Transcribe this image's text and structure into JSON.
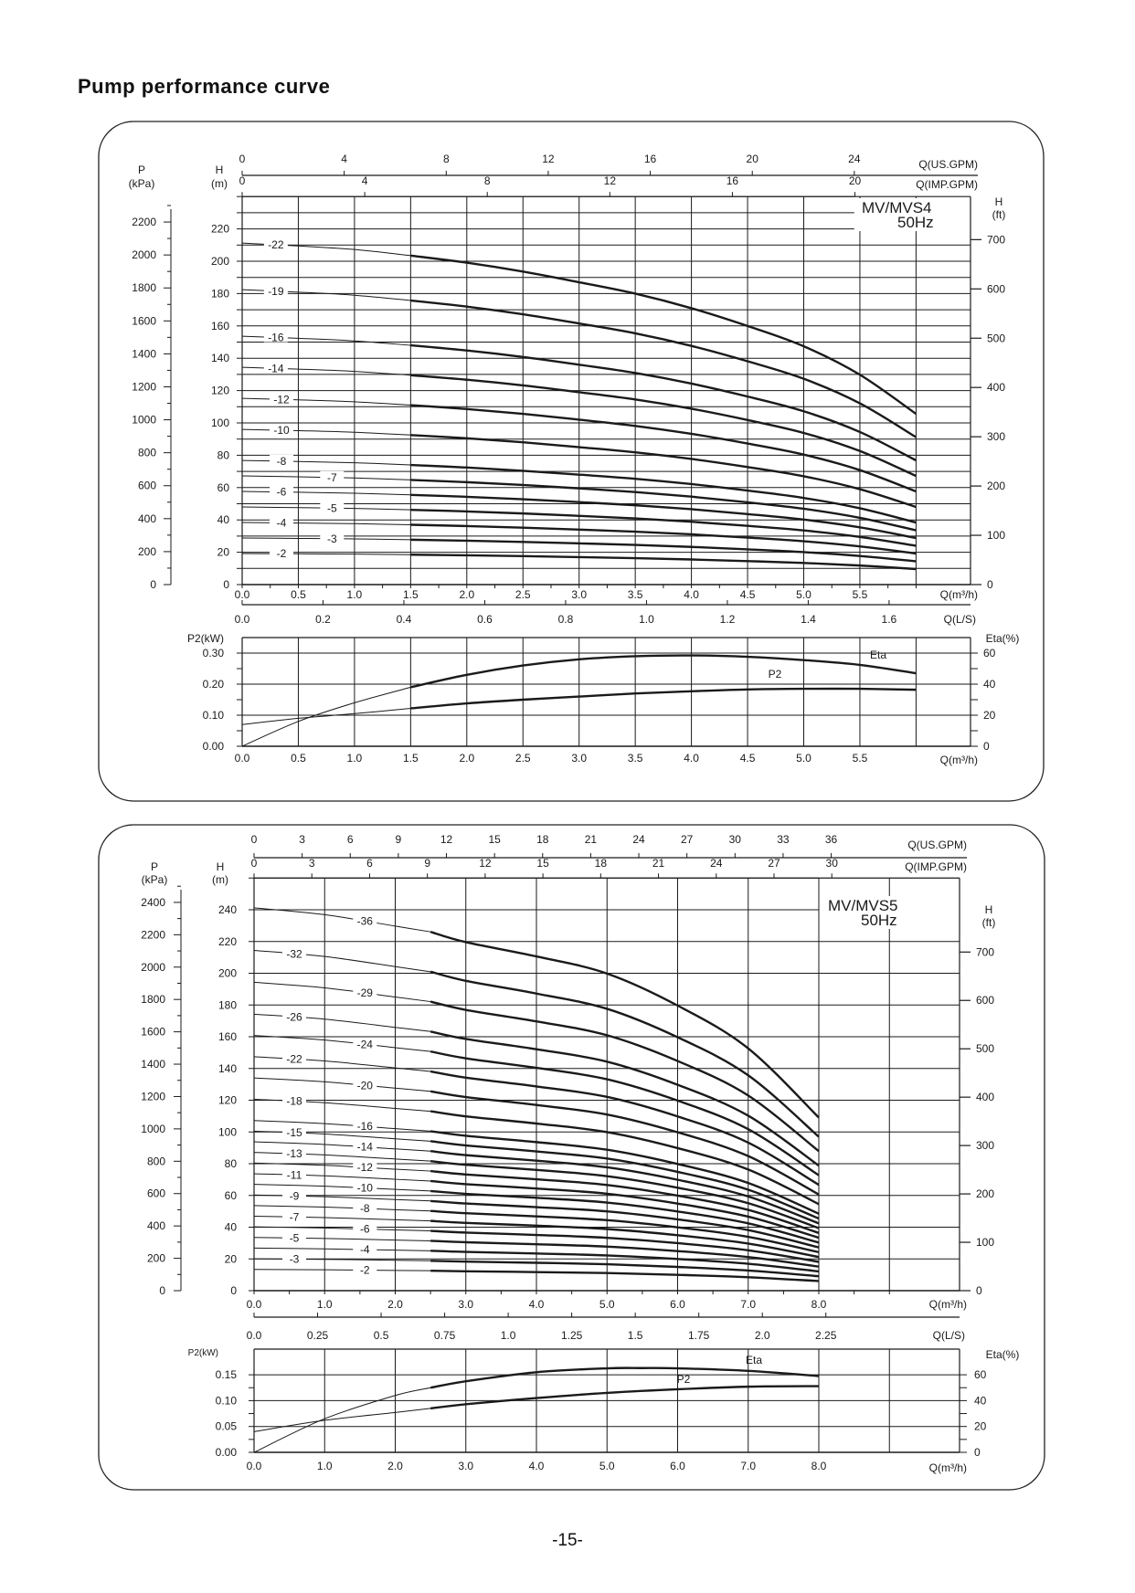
{
  "page": {
    "title": "Pump performance curve",
    "page_number": "-15-"
  },
  "chart_data": [
    {
      "type": "line",
      "title": "MV/MVS4",
      "subtitle": "50Hz",
      "axes": {
        "q_m3h": {
          "label": "Q(m³/h)",
          "ticks": [
            "0.0",
            "0.5",
            "1.0",
            "1.5",
            "2.0",
            "2.5",
            "3.0",
            "3.5",
            "4.0",
            "4.5",
            "5.0",
            "5.5"
          ]
        },
        "q_ls": {
          "label": "Q(L/S)",
          "ticks": [
            "0.0",
            "0.2",
            "0.4",
            "0.6",
            "0.8",
            "1.0",
            "1.2",
            "1.4",
            "1.6"
          ]
        },
        "q_usgpm": {
          "label": "Q(US.GPM)",
          "ticks": [
            "0",
            "4",
            "8",
            "12",
            "16",
            "20",
            "24"
          ]
        },
        "q_impgpm": {
          "label": "Q(IMP.GPM)",
          "ticks": [
            "0",
            "4",
            "8",
            "12",
            "16",
            "20"
          ]
        },
        "h_m": {
          "label": "H",
          "unit": "(m)",
          "ticks": [
            "0",
            "20",
            "40",
            "60",
            "80",
            "100",
            "120",
            "140",
            "160",
            "180",
            "200",
            "220"
          ]
        },
        "p_kpa": {
          "label": "P",
          "unit": "(kPa)",
          "ticks": [
            "0",
            "200",
            "400",
            "600",
            "800",
            "1000",
            "1200",
            "1400",
            "1600",
            "1800",
            "2000",
            "2200"
          ]
        },
        "h_ft": {
          "label": "H",
          "unit": "(ft)",
          "ticks": [
            "0",
            "100",
            "200",
            "300",
            "400",
            "500",
            "600",
            "700"
          ]
        },
        "p2_kw": {
          "label": "P2(kW)",
          "ticks": [
            "0.00",
            "0.10",
            "0.20",
            "0.30"
          ]
        },
        "eta": {
          "label": "Eta(%)",
          "ticks": [
            "0",
            "20",
            "40",
            "60"
          ]
        },
        "q_power": {
          "label": "Q(m³/h)",
          "ticks": [
            "0.0",
            "0.5",
            "1.0",
            "1.5",
            "2.0",
            "2.5",
            "3.0",
            "3.5",
            "4.0",
            "4.5",
            "5.0",
            "5.5"
          ]
        }
      },
      "head_curves": {
        "q": [
          0,
          0.5,
          1.0,
          1.5,
          2.0,
          2.5,
          3.0,
          3.5,
          4.0,
          4.5,
          5.0,
          5.5,
          6.0
        ],
        "head_per_stage_m": [
          9.6,
          9.52,
          9.42,
          9.25,
          9.05,
          8.8,
          8.5,
          8.18,
          7.77,
          7.27,
          6.7,
          5.9,
          4.8
        ],
        "stages": [
          22,
          19,
          16,
          14,
          12,
          10,
          8,
          7,
          6,
          5,
          4,
          3,
          2
        ],
        "labels": [
          "-22",
          "-19",
          "-16",
          "-14",
          "-12",
          "-10",
          "-8",
          "-7",
          "-6",
          "-5",
          "-4",
          "-3",
          "-2"
        ]
      },
      "power_curves": [
        {
          "name": "Eta",
          "unit": "%",
          "q": [
            0,
            0.5,
            1.0,
            1.5,
            2.0,
            2.5,
            3.0,
            3.5,
            4.0,
            4.5,
            5.0,
            5.5,
            6.0
          ],
          "values": [
            0,
            16,
            28,
            38,
            46,
            52,
            56,
            58,
            58.5,
            57.6,
            55.5,
            52.4,
            47
          ]
        },
        {
          "name": "P2",
          "unit": "kW",
          "q": [
            0,
            0.5,
            1.0,
            1.5,
            2.0,
            2.5,
            3.0,
            3.5,
            4.0,
            4.5,
            5.0,
            5.5,
            6.0
          ],
          "values": [
            0.07,
            0.09,
            0.105,
            0.122,
            0.138,
            0.15,
            0.16,
            0.17,
            0.177,
            0.183,
            0.185,
            0.185,
            0.182
          ]
        }
      ]
    },
    {
      "type": "line",
      "title": "MV/MVS5",
      "subtitle": "50Hz",
      "axes": {
        "q_m3h": {
          "label": "Q(m³/h)",
          "ticks": [
            "0.0",
            "1.0",
            "2.0",
            "3.0",
            "4.0",
            "5.0",
            "6.0",
            "7.0",
            "8.0"
          ]
        },
        "q_ls": {
          "label": "Q(L/S)",
          "ticks": [
            "0.0",
            "0.25",
            "0.5",
            "0.75",
            "1.0",
            "1.25",
            "1.5",
            "1.75",
            "2.0",
            "2.25"
          ]
        },
        "q_usgpm": {
          "label": "Q(US.GPM)",
          "ticks": [
            "0",
            "3",
            "6",
            "9",
            "12",
            "15",
            "18",
            "21",
            "24",
            "27",
            "30",
            "33",
            "36"
          ]
        },
        "q_impgpm": {
          "label": "Q(IMP.GPM)",
          "ticks": [
            "0",
            "3",
            "6",
            "9",
            "12",
            "15",
            "18",
            "21",
            "24",
            "27",
            "30"
          ]
        },
        "h_m": {
          "label": "H",
          "unit": "(m)",
          "ticks": [
            "0",
            "20",
            "40",
            "60",
            "80",
            "100",
            "120",
            "140",
            "160",
            "180",
            "200",
            "220",
            "240"
          ]
        },
        "p_kpa": {
          "label": "P",
          "unit": "(kPa)",
          "ticks": [
            "0",
            "200",
            "400",
            "600",
            "800",
            "1000",
            "1200",
            "1400",
            "1600",
            "1800",
            "2000",
            "2200",
            "2400"
          ]
        },
        "h_ft": {
          "label": "H",
          "unit": "(ft)",
          "ticks": [
            "0",
            "100",
            "200",
            "300",
            "400",
            "500",
            "600",
            "700"
          ]
        },
        "p2_kw": {
          "label": "P2(kW)",
          "ticks": [
            "0.00",
            "0.05",
            "0.10",
            "0.15"
          ]
        },
        "eta": {
          "label": "Eta(%)",
          "ticks": [
            "0",
            "20",
            "40",
            "60"
          ]
        },
        "q_power": {
          "label": "Q(m³/h)",
          "ticks": [
            "0.0",
            "1.0",
            "2.0",
            "3.0",
            "4.0",
            "5.0",
            "6.0",
            "7.0",
            "8.0"
          ]
        }
      },
      "head_curves": {
        "q": [
          0,
          1,
          2,
          2.5,
          3,
          4,
          5,
          6,
          7,
          8
        ],
        "head_per_stage_m": [
          6.7,
          6.58,
          6.38,
          6.28,
          6.1,
          5.85,
          5.55,
          4.99,
          4.24,
          3.03
        ],
        "stages": [
          36,
          32,
          29,
          26,
          24,
          22,
          20,
          18,
          16,
          15,
          14,
          13,
          12,
          11,
          10,
          9,
          8,
          7,
          6,
          5,
          4,
          3,
          2
        ],
        "labels": [
          "-36",
          "-32",
          "-29",
          "-26",
          "-24",
          "-22",
          "-20",
          "-18",
          "-16",
          "-15",
          "-14",
          "-13",
          "-12",
          "-11",
          "-10",
          "-9",
          "-8",
          "-7",
          "-6",
          "-5",
          "-4",
          "-3",
          "-2"
        ]
      },
      "power_curves": [
        {
          "name": "Eta",
          "unit": "%",
          "q": [
            0,
            1,
            2,
            2.5,
            3,
            4,
            5,
            5.5,
            6,
            7,
            8
          ],
          "values": [
            0,
            26,
            44,
            50,
            55,
            62,
            65,
            65.2,
            65,
            63,
            59
          ]
        },
        {
          "name": "P2",
          "unit": "kW",
          "q": [
            0,
            1,
            2,
            2.5,
            3,
            4,
            5,
            6,
            7,
            8
          ],
          "values": [
            0.04,
            0.062,
            0.077,
            0.085,
            0.093,
            0.105,
            0.115,
            0.122,
            0.127,
            0.128
          ]
        }
      ]
    }
  ]
}
